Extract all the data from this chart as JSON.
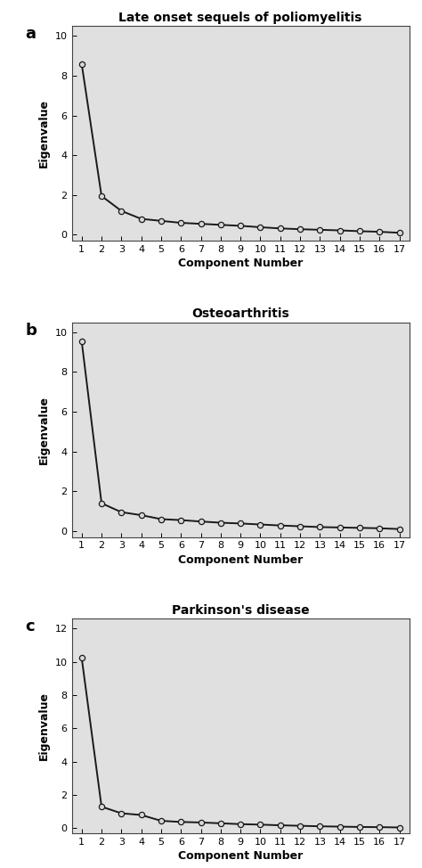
{
  "plots": [
    {
      "label": "a",
      "title": "Late onset sequels of poliomyelitis",
      "eigenvalues": [
        8.6,
        1.95,
        1.2,
        0.8,
        0.7,
        0.6,
        0.55,
        0.5,
        0.45,
        0.38,
        0.32,
        0.28,
        0.25,
        0.22,
        0.18,
        0.15,
        0.1
      ],
      "ylim": [
        -0.3,
        10.5
      ],
      "yticks": [
        0,
        2,
        4,
        6,
        8,
        10
      ]
    },
    {
      "label": "b",
      "title": "Osteoarthritis",
      "eigenvalues": [
        9.55,
        1.4,
        0.95,
        0.8,
        0.6,
        0.55,
        0.48,
        0.42,
        0.38,
        0.33,
        0.28,
        0.24,
        0.2,
        0.18,
        0.16,
        0.14,
        0.1
      ],
      "ylim": [
        -0.3,
        10.5
      ],
      "yticks": [
        0,
        2,
        4,
        6,
        8,
        10
      ]
    },
    {
      "label": "c",
      "title": "Parkinson's disease",
      "eigenvalues": [
        10.25,
        1.3,
        0.9,
        0.8,
        0.45,
        0.38,
        0.35,
        0.3,
        0.25,
        0.22,
        0.18,
        0.15,
        0.12,
        0.1,
        0.08,
        0.07,
        0.05
      ],
      "ylim": [
        -0.3,
        12.6
      ],
      "yticks": [
        0,
        2,
        4,
        6,
        8,
        10,
        12
      ]
    }
  ],
  "n_components": 17,
  "xlabel": "Component Number",
  "ylabel": "Eigenvalue",
  "bg_color": "#e0e0e0",
  "fig_bg_color": "#ffffff",
  "line_color": "#1a1a1a",
  "marker": "o",
  "marker_facecolor": "#d8d8d8",
  "marker_edgecolor": "#1a1a1a",
  "marker_size": 4.5,
  "line_width": 1.4,
  "title_fontsize": 10,
  "label_fontsize": 9,
  "tick_fontsize": 8,
  "panel_label_fontsize": 13
}
